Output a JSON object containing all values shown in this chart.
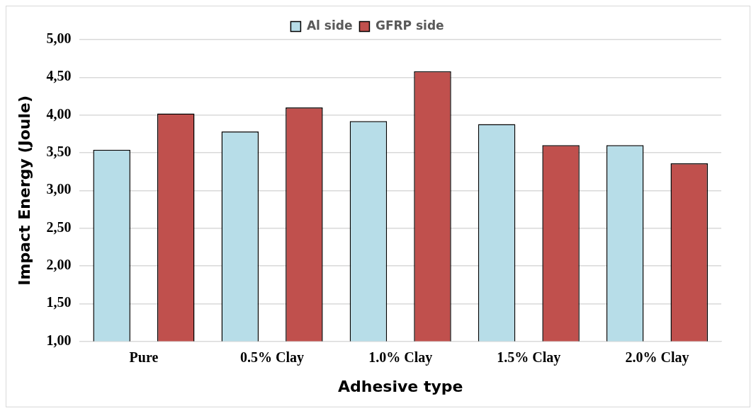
{
  "chart_data": {
    "type": "bar",
    "xlabel": "Adhesive type",
    "ylabel": "Impact Energy (Joule)",
    "categories": [
      "Pure",
      "0.5% Clay",
      "1.0% Clay",
      "1.5% Clay",
      "2.0% Clay"
    ],
    "series": [
      {
        "name": "Al side",
        "color": "#b7dde8",
        "values": [
          3.54,
          3.78,
          3.92,
          3.88,
          3.6
        ]
      },
      {
        "name": "GFRP side",
        "color": "#c0504d",
        "values": [
          4.02,
          4.1,
          4.58,
          3.6,
          3.36
        ]
      }
    ],
    "ylim": [
      1,
      5
    ],
    "yticks": [
      {
        "value": 1,
        "label": "1,00"
      },
      {
        "value": 1.5,
        "label": "1,50"
      },
      {
        "value": 2,
        "label": "2,00"
      },
      {
        "value": 2.5,
        "label": "2,50"
      },
      {
        "value": 3,
        "label": "3,00"
      },
      {
        "value": 3.5,
        "label": "3,50"
      },
      {
        "value": 4,
        "label": "4,00"
      },
      {
        "value": 4.5,
        "label": "4,50"
      },
      {
        "value": 5,
        "label": "5,00"
      }
    ],
    "grid": "y",
    "legend": "top"
  }
}
